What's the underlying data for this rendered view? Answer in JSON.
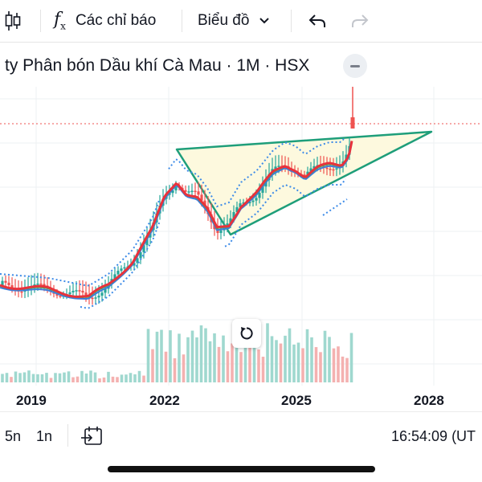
{
  "toolbar": {
    "indicators_label": "Các chỉ báo",
    "chart_type_label": "Biểu đồ",
    "icons": [
      "candles-icon",
      "fx-icon",
      "chevron-down-icon",
      "undo-icon",
      "redo-icon"
    ]
  },
  "title": {
    "text": "ty Phân bón Dầu khí Cà Mau · 1M · HSX"
  },
  "time_axis": {
    "labels": [
      "2019",
      "2022",
      "2025",
      "2028"
    ]
  },
  "bottom_bar": {
    "range_5y": "5n",
    "range_1y": "1n",
    "clock": "16:54:09 (UT"
  },
  "colors": {
    "up": "#26a69a",
    "down": "#ef5350",
    "up_volume": "#9fd8cf",
    "down_volume": "#f4b1b0",
    "pattern": "#1e9e7a",
    "pattern_fill": "#fdf9de",
    "ma_red": "#e8323c",
    "ma_green": "#3fae55",
    "ma_blue": "#3d7bd9",
    "dotted_band": "#3d8be8",
    "price_line": "#ef5350"
  },
  "chart_data": {
    "type": "candlestick",
    "timeframe": "1M",
    "exchange": "HSX",
    "x_labels": [
      "2019",
      "2022",
      "2025",
      "2028"
    ],
    "price_line_visible": true,
    "pattern": "triangle",
    "volume_visible": true
  }
}
